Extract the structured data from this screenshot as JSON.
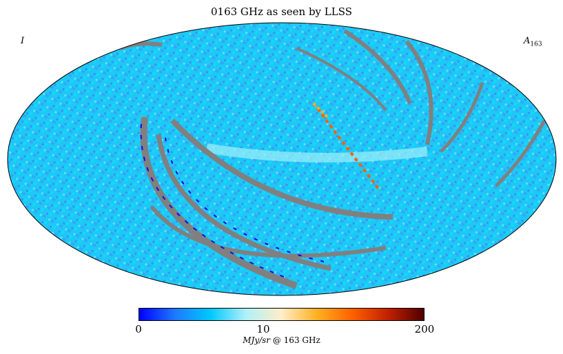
{
  "title": "0163 GHz as seen by LLSS",
  "corner_left": "I",
  "corner_right_symbol": "A",
  "corner_right_subscript": "163",
  "colorbar": {
    "min_label": "0",
    "mid_label": "10",
    "max_label": "200",
    "unit_italic": "MJy/sr",
    "unit_rest": " @ 163 GHz",
    "colors": [
      "#0000ff",
      "#1e78ff",
      "#00c8ff",
      "#b0f0f8",
      "#ffeec8",
      "#ffb020",
      "#ff6000",
      "#c02000",
      "#500000"
    ]
  },
  "map": {
    "projection": "Mollweide",
    "background_color": "#1ec8f5",
    "mask_color": "#808080"
  }
}
